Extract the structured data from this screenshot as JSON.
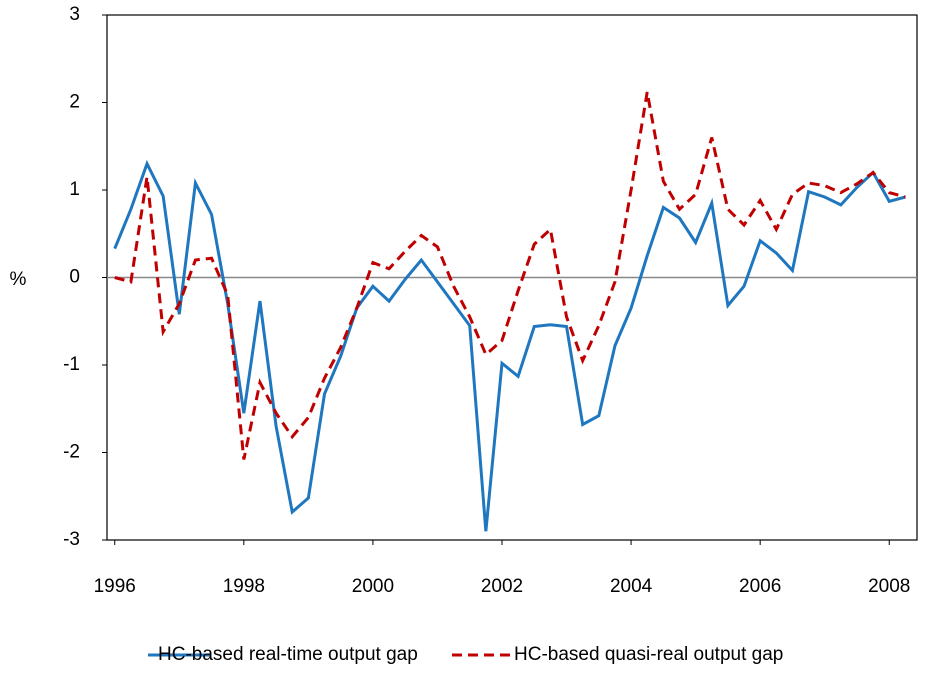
{
  "chart_data": {
    "type": "line",
    "y_label": "%",
    "x": [
      1996,
      1996.25,
      1996.5,
      1996.75,
      1997,
      1997.25,
      1997.5,
      1997.75,
      1998,
      1998.25,
      1998.5,
      1998.75,
      1999,
      1999.25,
      1999.5,
      1999.75,
      2000,
      2000.25,
      2000.5,
      2000.75,
      2001,
      2001.25,
      2001.5,
      2001.75,
      2002,
      2002.25,
      2002.5,
      2002.75,
      2003,
      2003.25,
      2003.5,
      2003.75,
      2004,
      2004.25,
      2004.5,
      2004.75,
      2005,
      2005.25,
      2005.5,
      2005.75,
      2006,
      2006.25,
      2006.5,
      2006.75,
      2007,
      2007.25,
      2007.5,
      2007.75,
      2008,
      2008.25
    ],
    "series": [
      {
        "name": "HC-based real-time output gap",
        "color": "#1f77c0",
        "dash": "solid",
        "values": [
          0.33,
          0.78,
          1.3,
          0.93,
          -0.42,
          1.08,
          0.72,
          -0.3,
          -1.55,
          -0.27,
          -1.7,
          -2.68,
          -2.52,
          -1.33,
          -0.9,
          -0.35,
          -0.1,
          -0.27,
          -0.02,
          0.2,
          -0.05,
          -0.3,
          -0.55,
          -2.9,
          -0.98,
          -1.13,
          -0.56,
          -0.54,
          -0.56,
          -1.68,
          -1.58,
          -0.78,
          -0.35,
          0.25,
          0.8,
          0.68,
          0.4,
          0.85,
          -0.32,
          -0.1,
          0.42,
          0.28,
          0.08,
          0.98,
          0.92,
          0.83,
          1.03,
          1.2,
          0.87,
          0.92
        ]
      },
      {
        "name": "HC-based quasi-real output gap",
        "color": "#c00000",
        "dash": "dashed",
        "values": [
          0.0,
          -0.05,
          1.15,
          -0.62,
          -0.3,
          0.2,
          0.22,
          -0.2,
          -2.08,
          -1.2,
          -1.55,
          -1.82,
          -1.6,
          -1.15,
          -0.8,
          -0.35,
          0.17,
          0.1,
          0.3,
          0.48,
          0.35,
          -0.1,
          -0.45,
          -0.88,
          -0.72,
          -0.15,
          0.38,
          0.55,
          -0.45,
          -0.95,
          -0.55,
          -0.05,
          1.0,
          2.12,
          1.1,
          0.78,
          0.95,
          1.6,
          0.78,
          0.6,
          0.88,
          0.55,
          0.95,
          1.08,
          1.05,
          0.97,
          1.07,
          1.2,
          0.97,
          0.92
        ]
      }
    ],
    "xlim": [
      1995.88,
      2008.43
    ],
    "xticks": [
      1996,
      1998,
      2000,
      2002,
      2004,
      2006,
      2008
    ],
    "ylim": [
      -3,
      3
    ],
    "yticks": [
      -3,
      -2,
      -1,
      0,
      1,
      2,
      3
    ],
    "zero_line": true,
    "legend": "bottom"
  }
}
